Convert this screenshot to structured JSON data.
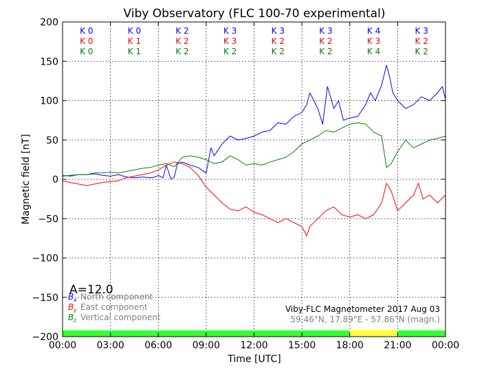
{
  "chart_data": {
    "type": "line",
    "title": "Viby Observatory (FLC 100-70 experimental)",
    "xlabel": "Time [UTC]",
    "ylabel": "Magnetic field [nT]",
    "xlim": [
      0,
      24
    ],
    "ylim": [
      -200,
      200
    ],
    "grid": true,
    "x_tick_labels": [
      "00:00",
      "03:00",
      "06:00",
      "09:00",
      "12:00",
      "15:00",
      "18:00",
      "21:00",
      "00:00"
    ],
    "x_ticks": [
      0,
      3,
      6,
      9,
      12,
      15,
      18,
      21,
      24
    ],
    "y_ticks": [
      -200,
      -150,
      -100,
      -50,
      0,
      50,
      100,
      150,
      200
    ],
    "y_tick_labels": [
      "−200",
      "−150",
      "−100",
      "−50",
      "0",
      "50",
      "100",
      "150",
      "200"
    ],
    "k_index": {
      "rows": [
        {
          "color": "#0000ff",
          "labels": [
            "K 0",
            "K 0",
            "K 2",
            "K 3",
            "K 3",
            "K 3",
            "K 4",
            "K 3"
          ]
        },
        {
          "color": "#ff0000",
          "labels": [
            "K 0",
            "K 1",
            "K 2",
            "K 3",
            "K 2",
            "K 2",
            "K 3",
            "K 2"
          ]
        },
        {
          "color": "#008000",
          "labels": [
            "K 0",
            "K 1",
            "K 2",
            "K 2",
            "K 2",
            "K 2",
            "K 4",
            "K 2"
          ]
        }
      ]
    },
    "a_index": "A=12.0",
    "legend": {
      "placement": "bottom-left",
      "entries": [
        {
          "symbol": "B",
          "sub": "x",
          "label": "North component",
          "color": "#0000ff"
        },
        {
          "symbol": "B",
          "sub": "y",
          "label": "East component",
          "color": "#ff0000"
        },
        {
          "symbol": "B",
          "sub": "z",
          "label": "Vertical component",
          "color": "#008000"
        }
      ]
    },
    "annotation": {
      "line1": "Viby-FLC Magnetometer 2017 Aug 03",
      "line2": "59.46°N, 17.89°E - 57.86°N (magn.)"
    },
    "activity_bar": [
      {
        "from": 0,
        "to": 18,
        "color": "#33ff33"
      },
      {
        "from": 18,
        "to": 21,
        "color": "#ffff33"
      },
      {
        "from": 21,
        "to": 24,
        "color": "#33ff33"
      }
    ],
    "series": [
      {
        "name": "North component",
        "color": "#0000ff",
        "x": [
          0,
          0.5,
          1,
          1.5,
          2,
          2.5,
          3,
          3.5,
          4,
          4.5,
          5,
          5.5,
          5.8,
          6,
          6.3,
          6.5,
          6.8,
          7,
          7.2,
          7.5,
          8,
          8.5,
          9,
          9.3,
          9.5,
          10,
          10.5,
          11,
          11.5,
          12,
          12.5,
          13,
          13.5,
          14,
          14.5,
          15,
          15.3,
          15.5,
          16,
          16.3,
          16.6,
          17,
          17.3,
          17.6,
          18,
          18.5,
          19,
          19.3,
          19.6,
          20,
          20.3,
          20.5,
          20.7,
          21,
          21.5,
          22,
          22.5,
          23,
          23.5,
          23.8,
          24
        ],
        "y": [
          4,
          5,
          6,
          6,
          7,
          5,
          4,
          6,
          3,
          2,
          3,
          2,
          3,
          5,
          2,
          18,
          0,
          3,
          20,
          22,
          18,
          15,
          8,
          40,
          30,
          45,
          55,
          50,
          52,
          55,
          60,
          62,
          72,
          70,
          80,
          85,
          95,
          110,
          90,
          70,
          118,
          90,
          100,
          75,
          78,
          80,
          95,
          110,
          100,
          120,
          145,
          130,
          110,
          100,
          90,
          95,
          105,
          100,
          110,
          118,
          102
        ]
      },
      {
        "name": "East component",
        "color": "#ff0000",
        "x": [
          0,
          0.5,
          1,
          1.5,
          2,
          2.5,
          3,
          3.5,
          4,
          4.5,
          5,
          5.5,
          6,
          6.5,
          7,
          7.5,
          8,
          8.5,
          9,
          9.5,
          10,
          10.5,
          11,
          11.5,
          12,
          12.5,
          13,
          13.5,
          14,
          14.5,
          15,
          15.3,
          15.5,
          16,
          16.5,
          17,
          17.5,
          18,
          18.5,
          19,
          19.5,
          20,
          20.3,
          20.6,
          21,
          21.5,
          22,
          22.3,
          22.6,
          23,
          23.5,
          24
        ],
        "y": [
          -2,
          -4,
          -6,
          -8,
          -6,
          -4,
          -3,
          -2,
          2,
          4,
          6,
          8,
          12,
          18,
          22,
          20,
          15,
          5,
          -10,
          -20,
          -30,
          -38,
          -40,
          -35,
          -42,
          -45,
          -50,
          -55,
          -50,
          -55,
          -60,
          -72,
          -60,
          -50,
          -40,
          -35,
          -45,
          -48,
          -45,
          -50,
          -45,
          -30,
          -5,
          -15,
          -40,
          -30,
          -20,
          -5,
          -25,
          -20,
          -30,
          -20
        ]
      },
      {
        "name": "Vertical component",
        "color": "#008000",
        "x": [
          0,
          0.5,
          1,
          1.5,
          2,
          2.5,
          3,
          3.5,
          4,
          4.5,
          5,
          5.5,
          6,
          6.5,
          7,
          7.5,
          8,
          8.5,
          9,
          9.5,
          10,
          10.5,
          11,
          11.5,
          12,
          12.5,
          13,
          13.5,
          14,
          14.5,
          15,
          15.5,
          16,
          16.5,
          17,
          17.5,
          18,
          18.5,
          19,
          19.5,
          20,
          20.3,
          20.6,
          21,
          21.5,
          22,
          22.5,
          23,
          23.5,
          24
        ],
        "y": [
          5,
          4,
          6,
          6,
          8,
          8,
          9,
          8,
          10,
          12,
          14,
          15,
          18,
          20,
          16,
          28,
          30,
          28,
          25,
          20,
          22,
          30,
          25,
          18,
          20,
          18,
          22,
          25,
          28,
          35,
          45,
          50,
          55,
          62,
          60,
          65,
          70,
          72,
          70,
          60,
          55,
          15,
          20,
          35,
          50,
          40,
          45,
          50,
          52,
          55
        ]
      }
    ]
  }
}
